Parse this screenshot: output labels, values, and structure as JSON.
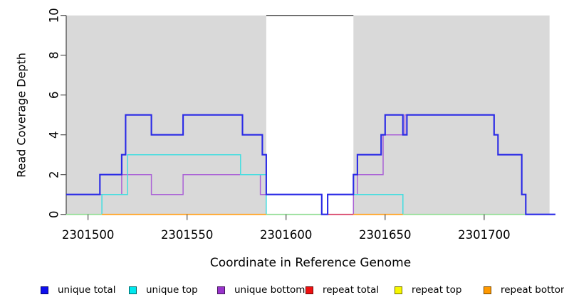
{
  "chart_data": {
    "type": "line",
    "subtype": "step-coverage",
    "title": "",
    "xlabel": "Coordinate in Reference Genome",
    "ylabel": "Read Coverage Depth",
    "xlim": [
      2301489,
      2301736
    ],
    "ylim": [
      0,
      10
    ],
    "x_ticks": [
      2301500,
      2301550,
      2301600,
      2301650,
      2301700
    ],
    "y_ticks": [
      0,
      2,
      4,
      6,
      8,
      10
    ],
    "grid": false,
    "legend_position": "bottom",
    "plot_bg": "#ffffff",
    "band_color": "#d9d9d9",
    "axis_color": "#4d4d4d",
    "background_bands": [
      {
        "x0": 2301489,
        "x1": 2301590
      },
      {
        "x0": 2301634,
        "x1": 2301733
      }
    ],
    "series": [
      {
        "name": "unique bottom",
        "color": "#ab63d6",
        "width": 1.5,
        "end": 2301736,
        "steps": [
          [
            2301489,
            1
          ],
          [
            2301517,
            2
          ],
          [
            2301532,
            1
          ],
          [
            2301548,
            2
          ],
          [
            2301587,
            1
          ],
          [
            2301618,
            0
          ],
          [
            2301634,
            1
          ],
          [
            2301636,
            2
          ],
          [
            2301649,
            4
          ],
          [
            2301660,
            5
          ],
          [
            2301705,
            4
          ],
          [
            2301707,
            3
          ],
          [
            2301719,
            1
          ],
          [
            2301721,
            0
          ]
        ]
      },
      {
        "name": "unique top",
        "color": "#45dde0",
        "width": 1.5,
        "end": 2301736,
        "steps": [
          [
            2301489,
            0
          ],
          [
            2301507,
            1
          ],
          [
            2301520,
            3
          ],
          [
            2301577,
            2
          ],
          [
            2301590,
            0
          ],
          [
            2301621,
            1
          ],
          [
            2301659,
            0
          ]
        ]
      },
      {
        "name": "unique total",
        "color": "#2a2ae6",
        "width": 2.1,
        "end": 2301736,
        "steps": [
          [
            2301489,
            1
          ],
          [
            2301506,
            2
          ],
          [
            2301517,
            3
          ],
          [
            2301519,
            5
          ],
          [
            2301532,
            4
          ],
          [
            2301548,
            5
          ],
          [
            2301578,
            4
          ],
          [
            2301588,
            3
          ],
          [
            2301590,
            1
          ],
          [
            2301618,
            0
          ],
          [
            2301621,
            1
          ],
          [
            2301634,
            2
          ],
          [
            2301636,
            3
          ],
          [
            2301648,
            4
          ],
          [
            2301650,
            5
          ],
          [
            2301659,
            4
          ],
          [
            2301661,
            5
          ],
          [
            2301705,
            4
          ],
          [
            2301707,
            3
          ],
          [
            2301719,
            1
          ],
          [
            2301721,
            0
          ]
        ]
      }
    ],
    "zero_line_segments": [
      {
        "x0": 2301489,
        "x1": 2301507,
        "color": "#8fdc92",
        "name": "repeat-top-over-unique-top"
      },
      {
        "x0": 2301507,
        "x1": 2301590,
        "color": "#ff9d17",
        "name": "repeat-bottom"
      },
      {
        "x0": 2301590,
        "x1": 2301618,
        "color": "#8fdc92",
        "name": "repeat-top-over-unique-top"
      },
      {
        "x0": 2301621,
        "x1": 2301634,
        "color": "#d63a60",
        "name": "repeat-total"
      },
      {
        "x0": 2301634,
        "x1": 2301659,
        "color": "#ff9d17",
        "name": "repeat-bottom"
      },
      {
        "x0": 2301659,
        "x1": 2301721,
        "color": "#8fdc92",
        "name": "repeat-top-over-unique-top"
      }
    ]
  },
  "legend": {
    "items": [
      {
        "label": "unique total",
        "color": "#0f0fee"
      },
      {
        "label": "unique top",
        "color": "#00e8ee"
      },
      {
        "label": "unique bottom",
        "color": "#9933cc"
      },
      {
        "label": "repeat total",
        "color": "#ee1111"
      },
      {
        "label": "repeat top",
        "color": "#f7f700"
      },
      {
        "label": "repeat bottom",
        "color": "#ff9900"
      }
    ]
  }
}
